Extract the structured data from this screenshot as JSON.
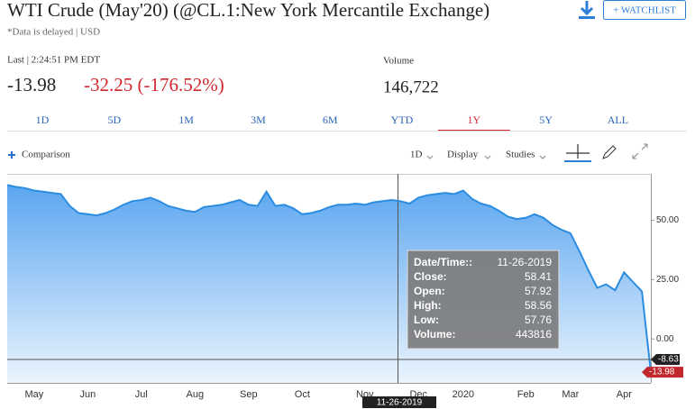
{
  "header": {
    "title": "WTI Crude (May'20) (@CL.1:New York Mercantile Exchange)",
    "delayed_note": "*Data is delayed | USD",
    "watchlist_button": "+ WATCHLIST",
    "last_label": "Last | 2:24:51 PM EDT",
    "last_price": "-13.98",
    "change": "-32.25 (-176.52%)",
    "volume_label": "Volume",
    "volume": "146,722"
  },
  "tabs": [
    "1D",
    "5D",
    "1M",
    "3M",
    "6M",
    "YTD",
    "1Y",
    "5Y",
    "ALL"
  ],
  "active_tab": "1Y",
  "toolbar": {
    "comparison": "Comparison",
    "interval": "1D",
    "display": "Display",
    "studies": "Studies"
  },
  "chart_data": {
    "type": "area",
    "color": "#2b8ce0",
    "categories": [
      null,
      null,
      "May",
      null,
      null,
      null,
      null,
      null,
      "Jun",
      null,
      null,
      null,
      null,
      null,
      "Jul",
      null,
      null,
      null,
      null,
      null,
      "Aug",
      null,
      null,
      null,
      null,
      null,
      "Sep",
      null,
      null,
      null,
      null,
      null,
      "Oct",
      null,
      null,
      null,
      null,
      null,
      null,
      "Nov",
      null,
      null,
      null,
      null,
      null,
      "Dec",
      null,
      null,
      null,
      null,
      "2020",
      null,
      null,
      null,
      null,
      null,
      null,
      "Feb",
      null,
      null,
      null,
      null,
      "Mar",
      null,
      null,
      null,
      null,
      null,
      "Apr",
      null,
      null,
      null,
      null
    ],
    "values": [
      64.8,
      64,
      63.5,
      62.5,
      62,
      61.5,
      61,
      56,
      53,
      52.5,
      52,
      53,
      54.5,
      56.5,
      58,
      58.5,
      59.5,
      58,
      56,
      55,
      54,
      53.5,
      55.5,
      56,
      56.5,
      57.5,
      58.5,
      56.5,
      56,
      62,
      56,
      56.5,
      55,
      52.5,
      53,
      54,
      55.5,
      56.5,
      56.5,
      57,
      56.5,
      57.5,
      58,
      58.5,
      58,
      57,
      59.5,
      60.5,
      61,
      61.5,
      61,
      62.5,
      59,
      57,
      56,
      54,
      51.5,
      50.5,
      51,
      52.5,
      51,
      48,
      46,
      44.5,
      37,
      29,
      21.5,
      23,
      20.5,
      28,
      24,
      20,
      -13.98
    ],
    "ylim": [
      -18.5,
      69.5
    ],
    "yticks": [
      {
        "value": 0,
        "label": "0.00"
      },
      {
        "value": 25,
        "label": "25.00"
      },
      {
        "value": 50,
        "label": "50.00"
      }
    ],
    "crosshair": {
      "date": "11-26-2019",
      "value": -8.63
    },
    "last_value": -13.98,
    "tooltip": [
      [
        "Date/Time::",
        "11-26-2019"
      ],
      [
        "Close:",
        "58.41"
      ],
      [
        "Open:",
        "57.92"
      ],
      [
        "High:",
        "58.56"
      ],
      [
        "Low:",
        "57.76"
      ],
      [
        "Volume:",
        "443816"
      ]
    ]
  }
}
